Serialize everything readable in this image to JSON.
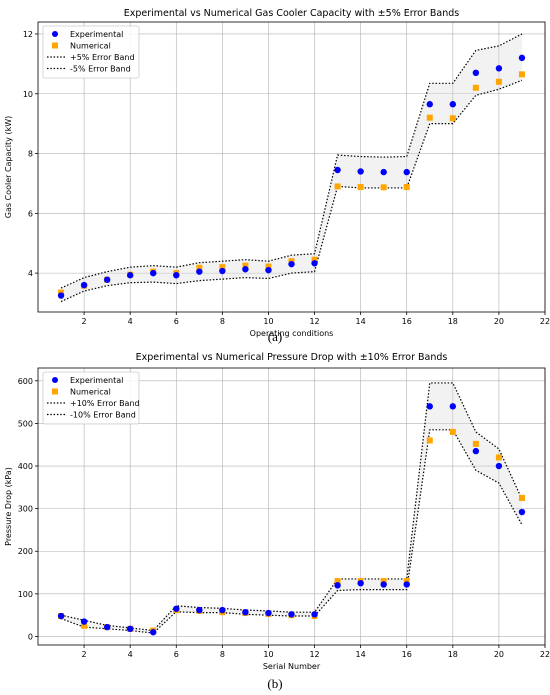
{
  "chart_data": [
    {
      "type": "scatter",
      "title": "Experimental vs Numerical Gas Cooler Capacity with ±5% Error Bands",
      "xlabel": "Operating conditions",
      "ylabel": "Gas Cooler Capacity (kW)",
      "caption": "(a)",
      "xlim": [
        0,
        22
      ],
      "ylim": [
        2.7,
        12.4
      ],
      "xticks": [
        2,
        4,
        6,
        8,
        10,
        12,
        14,
        16,
        18,
        20,
        22
      ],
      "yticks": [
        4,
        6,
        8,
        10,
        12
      ],
      "xtick_labels": [
        "2",
        "4",
        "6",
        "8",
        "10",
        "12",
        "14",
        "16",
        "18",
        "20",
        "22"
      ],
      "ytick_labels": [
        "4",
        "6",
        "8",
        "10",
        "12"
      ],
      "grid": true,
      "legend_position": "top-left",
      "x": [
        1,
        2,
        3,
        4,
        5,
        6,
        7,
        8,
        9,
        10,
        11,
        12,
        13,
        14,
        15,
        16,
        17,
        18,
        19,
        20,
        21
      ],
      "series": [
        {
          "name": "Experimental",
          "marker": "circle",
          "color": "#0000ff",
          "values": [
            3.25,
            3.6,
            3.78,
            3.93,
            4.0,
            3.93,
            4.05,
            4.07,
            4.13,
            4.1,
            4.3,
            4.33,
            7.45,
            7.4,
            7.38,
            7.38,
            9.65,
            9.65,
            10.7,
            10.85,
            11.2
          ]
        },
        {
          "name": "Numerical",
          "marker": "square",
          "color": "#ffa500",
          "values": [
            3.35,
            3.58,
            3.78,
            3.95,
            4.05,
            4.0,
            4.18,
            4.2,
            4.25,
            4.22,
            4.4,
            4.45,
            6.9,
            6.88,
            6.87,
            6.88,
            9.2,
            9.18,
            10.2,
            10.4,
            10.65
          ]
        },
        {
          "name": "+5% Error Band",
          "style": "dotted",
          "color": "#000000",
          "values": [
            3.5,
            3.85,
            4.05,
            4.2,
            4.25,
            4.2,
            4.35,
            4.4,
            4.45,
            4.4,
            4.6,
            4.65,
            7.95,
            7.9,
            7.88,
            7.9,
            10.35,
            10.35,
            11.45,
            11.6,
            12.0
          ]
        },
        {
          "name": "-5% Error Band",
          "style": "dotted",
          "color": "#000000",
          "values": [
            3.05,
            3.4,
            3.58,
            3.68,
            3.7,
            3.65,
            3.75,
            3.8,
            3.85,
            3.82,
            4.0,
            4.05,
            6.9,
            6.85,
            6.85,
            6.85,
            9.0,
            9.0,
            9.95,
            10.15,
            10.45
          ]
        }
      ]
    },
    {
      "type": "scatter",
      "title": "Experimental vs Numerical Pressure Drop with ±10% Error Bands",
      "xlabel": "Serial Number",
      "ylabel": "Pressure Drop (kPa)",
      "caption": "(b)",
      "xlim": [
        0,
        22
      ],
      "ylim": [
        -20,
        630
      ],
      "xticks": [
        2,
        4,
        6,
        8,
        10,
        12,
        14,
        16,
        18,
        20,
        22
      ],
      "yticks": [
        0,
        100,
        200,
        300,
        400,
        500,
        600
      ],
      "xtick_labels": [
        "2",
        "4",
        "6",
        "8",
        "10",
        "12",
        "14",
        "16",
        "18",
        "20",
        "22"
      ],
      "ytick_labels": [
        "0",
        "100",
        "200",
        "300",
        "400",
        "500",
        "600"
      ],
      "grid": true,
      "legend_position": "top-left",
      "x": [
        1,
        2,
        3,
        4,
        5,
        6,
        7,
        8,
        9,
        10,
        11,
        12,
        13,
        14,
        15,
        16,
        17,
        18,
        19,
        20,
        21
      ],
      "series": [
        {
          "name": "Experimental",
          "marker": "circle",
          "color": "#0000ff",
          "values": [
            48,
            35,
            22,
            18,
            10,
            65,
            62,
            62,
            57,
            55,
            52,
            52,
            120,
            125,
            122,
            122,
            540,
            540,
            435,
            400,
            292
          ]
        },
        {
          "name": "Numerical",
          "marker": "square",
          "color": "#ffa500",
          "values": [
            48,
            25,
            22,
            18,
            14,
            62,
            60,
            57,
            55,
            53,
            50,
            48,
            130,
            130,
            130,
            130,
            460,
            480,
            452,
            420,
            325
          ]
        },
        {
          "name": "+10% Error Band",
          "style": "dotted",
          "color": "#000000",
          "values": [
            50,
            38,
            26,
            20,
            14,
            72,
            68,
            66,
            62,
            60,
            57,
            57,
            135,
            135,
            135,
            135,
            595,
            595,
            480,
            440,
            322
          ]
        },
        {
          "name": "-10% Error Band",
          "style": "dotted",
          "color": "#000000",
          "values": [
            42,
            22,
            18,
            14,
            8,
            58,
            56,
            56,
            52,
            50,
            48,
            48,
            108,
            110,
            110,
            110,
            485,
            485,
            390,
            360,
            262
          ]
        }
      ]
    }
  ]
}
